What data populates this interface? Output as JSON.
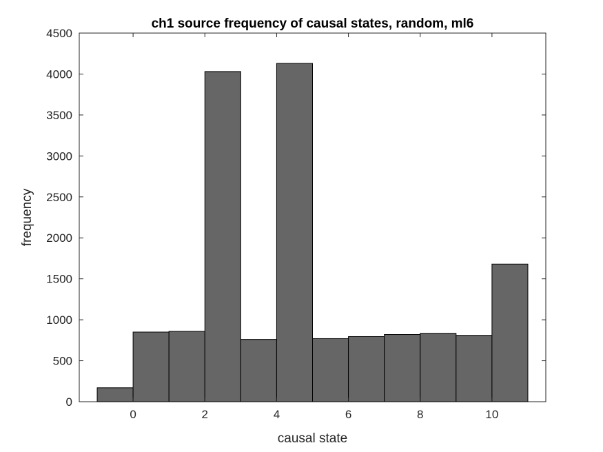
{
  "chart_data": {
    "type": "bar",
    "title": "ch1 source frequency of causal states, random, ml6",
    "xlabel": "causal state",
    "ylabel": "frequency",
    "xlim": [
      -1.5,
      11.5
    ],
    "ylim": [
      0,
      4500
    ],
    "xticks": [
      0,
      2,
      4,
      6,
      8,
      10
    ],
    "yticks": [
      0,
      500,
      1000,
      1500,
      2000,
      2500,
      3000,
      3500,
      4000,
      4500
    ],
    "bins": [
      {
        "x0": -1,
        "x1": 0,
        "value": 170
      },
      {
        "x0": 0,
        "x1": 1,
        "value": 850
      },
      {
        "x0": 1,
        "x1": 2,
        "value": 860
      },
      {
        "x0": 2,
        "x1": 3,
        "value": 4030
      },
      {
        "x0": 3,
        "x1": 4,
        "value": 760
      },
      {
        "x0": 4,
        "x1": 5,
        "value": 4130
      },
      {
        "x0": 5,
        "x1": 6,
        "value": 770
      },
      {
        "x0": 6,
        "x1": 7,
        "value": 795
      },
      {
        "x0": 7,
        "x1": 8,
        "value": 820
      },
      {
        "x0": 8,
        "x1": 9,
        "value": 835
      },
      {
        "x0": 9,
        "x1": 10,
        "value": 810
      },
      {
        "x0": 10,
        "x1": 11,
        "value": 1680
      }
    ],
    "bar_color": "#666666",
    "edge_color": "#000000",
    "grid": false,
    "legend": "none"
  }
}
